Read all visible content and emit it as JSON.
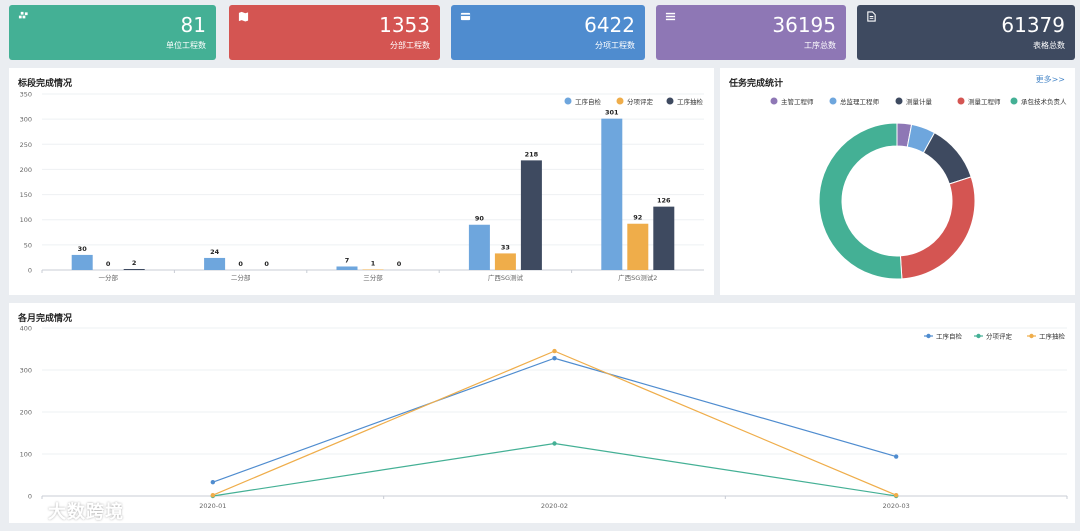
{
  "stats": [
    {
      "value": "81",
      "label": "单位工程数",
      "color": "#44b095",
      "icon": "cubes-icon"
    },
    {
      "value": "1353",
      "label": "分部工程数",
      "color": "#d45552",
      "icon": "map-icon"
    },
    {
      "value": "6422",
      "label": "分项工程数",
      "color": "#4f8ccf",
      "icon": "card-icon"
    },
    {
      "value": "36195",
      "label": "工序总数",
      "color": "#8e77b5",
      "icon": "list-icon"
    },
    {
      "value": "61379",
      "label": "表格总数",
      "color": "#3e4a60",
      "icon": "document-icon"
    }
  ],
  "bar_panel": {
    "title": "标段完成情况"
  },
  "donut_panel": {
    "title": "任务完成统计",
    "more": "更多>>"
  },
  "line_panel": {
    "title": "各月完成情况"
  },
  "watermark": "大数跨境",
  "chart_data": [
    {
      "type": "bar",
      "title": "标段完成情况",
      "categories": [
        "一分部",
        "二分部",
        "三分部",
        "广西SG测试",
        "广西SG测试2"
      ],
      "series": [
        {
          "name": "工序自检",
          "color": "#6ea6dd",
          "values": [
            30,
            24,
            7,
            90,
            301
          ]
        },
        {
          "name": "分项评定",
          "color": "#efad4a",
          "values": [
            0,
            0,
            1,
            33,
            92
          ]
        },
        {
          "name": "工序抽检",
          "color": "#3e4a60",
          "values": [
            2,
            0,
            0,
            218,
            126
          ]
        }
      ],
      "ylim": [
        0,
        350
      ],
      "yticks": [
        0,
        50,
        100,
        150,
        200,
        250,
        300,
        350
      ],
      "legend": "top-right"
    },
    {
      "type": "pie",
      "title": "任务完成统计",
      "donut": true,
      "labels": [
        "主管工程师",
        "总监理工程师",
        "测量计量",
        "测量工程师",
        "承包技术负责人"
      ],
      "colors": [
        "#8e77b5",
        "#6ea6dd",
        "#3e4a60",
        "#d45552",
        "#44b095"
      ],
      "values": [
        3,
        5,
        12,
        29,
        51
      ],
      "legend": "top"
    },
    {
      "type": "line",
      "title": "各月完成情况",
      "x": [
        "2020-01",
        "2020-02",
        "2020-03"
      ],
      "series": [
        {
          "name": "工序自检",
          "color": "#4f8ccf",
          "values": [
            33,
            328,
            94
          ]
        },
        {
          "name": "分项评定",
          "color": "#44b095",
          "values": [
            0,
            125,
            0
          ]
        },
        {
          "name": "工序抽检",
          "color": "#efad4a",
          "values": [
            2,
            345,
            2
          ]
        }
      ],
      "ylim": [
        0,
        400
      ],
      "yticks": [
        0,
        100,
        200,
        300,
        400
      ],
      "legend": "top-right"
    }
  ]
}
